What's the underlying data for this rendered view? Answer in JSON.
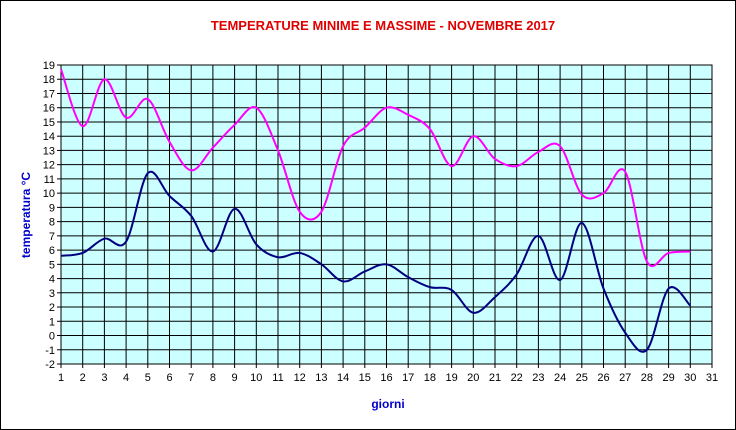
{
  "chart_data": {
    "type": "line",
    "title": "TEMPERATURE MINIME E MASSIME  - NOVEMBRE 2017",
    "xlabel": "giorni",
    "ylabel": "temperatura °C",
    "xlim": [
      1,
      31
    ],
    "ylim": [
      -2,
      19
    ],
    "x_ticks": [
      1,
      2,
      3,
      4,
      5,
      6,
      7,
      8,
      9,
      10,
      11,
      12,
      13,
      14,
      15,
      16,
      17,
      18,
      19,
      20,
      21,
      22,
      23,
      24,
      25,
      26,
      27,
      28,
      29,
      30,
      31
    ],
    "y_ticks": [
      -2,
      -1,
      0,
      1,
      2,
      3,
      4,
      5,
      6,
      7,
      8,
      9,
      10,
      11,
      12,
      13,
      14,
      15,
      16,
      17,
      18,
      19
    ],
    "grid": true,
    "plot_background": "#ccffff",
    "x": [
      1,
      2,
      3,
      4,
      5,
      6,
      7,
      8,
      9,
      10,
      11,
      12,
      13,
      14,
      15,
      16,
      17,
      18,
      19,
      20,
      21,
      22,
      23,
      24,
      25,
      26,
      27,
      28,
      29,
      30
    ],
    "series": [
      {
        "color": "#ff00ff",
        "values": [
          18.7,
          14.7,
          18.0,
          15.3,
          16.6,
          13.6,
          11.6,
          13.2,
          14.8,
          16.0,
          13.0,
          8.7,
          8.7,
          13.3,
          14.6,
          16.0,
          15.5,
          14.5,
          11.9,
          14.0,
          12.4,
          11.9,
          12.9,
          13.3,
          9.9,
          10.0,
          11.5,
          5.2,
          5.8,
          5.9
        ]
      },
      {
        "color": "#000080",
        "values": [
          5.6,
          5.8,
          6.8,
          6.6,
          11.4,
          9.8,
          8.4,
          5.9,
          8.9,
          6.4,
          5.5,
          5.8,
          5.0,
          3.8,
          4.5,
          5.0,
          4.1,
          3.4,
          3.2,
          1.6,
          2.7,
          4.3,
          7.0,
          3.9,
          7.9,
          3.3,
          0.2,
          -1.0,
          3.3,
          2.1
        ]
      }
    ]
  }
}
